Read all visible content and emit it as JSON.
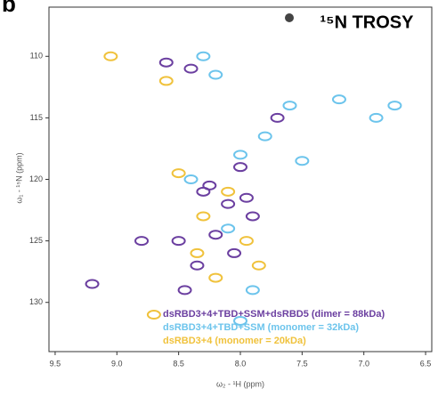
{
  "panel_label": "b",
  "chart_data": {
    "type": "scatter",
    "title": "¹⁵N TROSY",
    "x_label": "ω₂ - ¹H (ppm)",
    "y_label": "ω₁ - ¹⁵N (ppm)",
    "xlim": [
      9.55,
      6.45
    ],
    "ylim": [
      106,
      134
    ],
    "xticks": [
      {
        "value": 9.5,
        "label": "9.5"
      },
      {
        "value": 9,
        "label": "9.0"
      },
      {
        "value": 8.5,
        "label": "8.5"
      },
      {
        "value": 8,
        "label": "8.0"
      },
      {
        "value": 7.5,
        "label": "7.5"
      },
      {
        "value": 7,
        "label": "7.0"
      },
      {
        "value": 6.5,
        "label": "6.5"
      }
    ],
    "yticks": [
      110,
      115,
      120,
      125,
      130
    ],
    "series": [
      {
        "name": "dsRBD3+4+TBD+SSM+dsRBD5 (dimer = 88kDa)",
        "color": "#6b3fa0",
        "x": [
          8.6,
          8.4,
          8.3,
          8.1,
          8.0,
          7.9,
          8.2,
          8.5,
          8.8,
          9.2,
          8.45,
          7.7,
          8.35,
          8.05,
          8.25,
          7.95
        ],
        "values": [
          110.5,
          111,
          121,
          122,
          119,
          123,
          124.5,
          125,
          125,
          128.5,
          129,
          115,
          127,
          126,
          120.5,
          121.5
        ]
      },
      {
        "name": "dsRBD3+4+TBD+SSM (monomer = 32kDa)",
        "color": "#6cc4ec",
        "x": [
          8.3,
          8.2,
          7.6,
          7.2,
          6.9,
          6.75,
          7.8,
          8.0,
          8.4,
          8.1,
          7.5,
          7.9,
          8.0
        ],
        "values": [
          110,
          111.5,
          114,
          113.5,
          115,
          114,
          116.5,
          118,
          120,
          124,
          118.5,
          129,
          131.5
        ]
      },
      {
        "name": "dsRBD3+4 (monomer = 20kDa)",
        "color": "#f0c23c",
        "x": [
          8.5,
          8.3,
          8.1,
          7.95,
          8.35,
          8.6,
          7.85,
          8.2,
          9.05,
          8.7
        ],
        "values": [
          119.5,
          123,
          121,
          125,
          126,
          112,
          127,
          128,
          110,
          131
        ]
      }
    ]
  }
}
